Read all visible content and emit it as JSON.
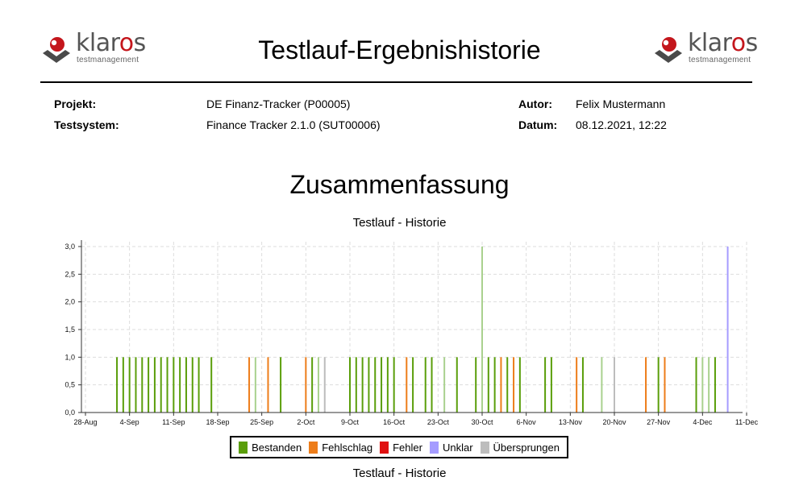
{
  "header": {
    "title": "Testlauf-Ergebnishistorie",
    "logo": {
      "brand_prefix": "klar",
      "brand_accent": "o",
      "brand_suffix": "s",
      "sub": "testmanagement"
    }
  },
  "meta": {
    "projekt_label": "Projekt:",
    "projekt_value": "DE Finanz-Tracker  (P00005)",
    "testsystem_label": "Testsystem:",
    "testsystem_value": "Finance Tracker 2.1.0 (SUT00006)",
    "autor_label": "Autor:",
    "autor_value": "Felix Mustermann",
    "datum_label": "Datum:",
    "datum_value": "08.12.2021, 12:22"
  },
  "section_title": "Zusammenfassung",
  "chart_data": {
    "type": "bar",
    "title": "Testlauf - Historie",
    "caption": "Testlauf - Historie",
    "xlabel": "",
    "ylabel": "",
    "ylim": [
      0,
      3.0
    ],
    "yticks": [
      "0,0",
      "0,5",
      "1,0",
      "1,5",
      "2,0",
      "2,5",
      "3,0"
    ],
    "xticks": [
      "28-Aug",
      "4-Sep",
      "11-Sep",
      "18-Sep",
      "25-Sep",
      "2-Oct",
      "9-Oct",
      "16-Oct",
      "23-Oct",
      "30-Oct",
      "6-Nov",
      "13-Nov",
      "20-Nov",
      "27-Nov",
      "4-Dec",
      "11-Dec"
    ],
    "x_start": "2021-08-28",
    "x_end": "2021-12-11",
    "grid": true,
    "legend_position": "bottom",
    "colors": {
      "Bestanden": "#5a9e0a",
      "Bestanden_light": "#a9d18e",
      "Fehlschlag": "#ed7d1a",
      "Fehler": "#e01010",
      "Unklar": "#a59cff",
      "Übersprungen": "#bdbdbd"
    },
    "legend": [
      {
        "name": "Bestanden",
        "color": "#5a9e0a"
      },
      {
        "name": "Fehlschlag",
        "color": "#ed7d1a"
      },
      {
        "name": "Fehler",
        "color": "#e01010"
      },
      {
        "name": "Unklar",
        "color": "#a59cff"
      },
      {
        "name": "Übersprungen",
        "color": "#bdbdbd"
      }
    ],
    "bars": [
      {
        "date": "2021-09-02",
        "value": 1,
        "status": "Bestanden"
      },
      {
        "date": "2021-09-03",
        "value": 1,
        "status": "Bestanden"
      },
      {
        "date": "2021-09-04",
        "value": 1,
        "status": "Bestanden"
      },
      {
        "date": "2021-09-05",
        "value": 1,
        "status": "Bestanden"
      },
      {
        "date": "2021-09-06",
        "value": 1,
        "status": "Bestanden"
      },
      {
        "date": "2021-09-07",
        "value": 1,
        "status": "Bestanden"
      },
      {
        "date": "2021-09-08",
        "value": 1,
        "status": "Bestanden"
      },
      {
        "date": "2021-09-09",
        "value": 1,
        "status": "Bestanden"
      },
      {
        "date": "2021-09-10",
        "value": 1,
        "status": "Bestanden"
      },
      {
        "date": "2021-09-11",
        "value": 1,
        "status": "Bestanden"
      },
      {
        "date": "2021-09-12",
        "value": 1,
        "status": "Bestanden"
      },
      {
        "date": "2021-09-13",
        "value": 1,
        "status": "Bestanden"
      },
      {
        "date": "2021-09-14",
        "value": 1,
        "status": "Bestanden"
      },
      {
        "date": "2021-09-15",
        "value": 1,
        "status": "Bestanden"
      },
      {
        "date": "2021-09-17",
        "value": 1,
        "status": "Bestanden"
      },
      {
        "date": "2021-09-23",
        "value": 1,
        "status": "Fehlschlag"
      },
      {
        "date": "2021-09-24",
        "value": 1,
        "status": "Bestanden_light"
      },
      {
        "date": "2021-09-26",
        "value": 1,
        "status": "Fehlschlag"
      },
      {
        "date": "2021-09-28",
        "value": 1,
        "status": "Bestanden"
      },
      {
        "date": "2021-10-02",
        "value": 1,
        "status": "Fehlschlag"
      },
      {
        "date": "2021-10-03",
        "value": 1,
        "status": "Bestanden"
      },
      {
        "date": "2021-10-04",
        "value": 1,
        "status": "Bestanden_light"
      },
      {
        "date": "2021-10-05",
        "value": 1,
        "status": "Übersprungen"
      },
      {
        "date": "2021-10-09",
        "value": 1,
        "status": "Bestanden"
      },
      {
        "date": "2021-10-10",
        "value": 1,
        "status": "Bestanden"
      },
      {
        "date": "2021-10-11",
        "value": 1,
        "status": "Bestanden"
      },
      {
        "date": "2021-10-12",
        "value": 1,
        "status": "Bestanden"
      },
      {
        "date": "2021-10-13",
        "value": 1,
        "status": "Bestanden"
      },
      {
        "date": "2021-10-14",
        "value": 1,
        "status": "Bestanden"
      },
      {
        "date": "2021-10-15",
        "value": 1,
        "status": "Bestanden"
      },
      {
        "date": "2021-10-16",
        "value": 1,
        "status": "Bestanden"
      },
      {
        "date": "2021-10-18",
        "value": 1,
        "status": "Fehlschlag"
      },
      {
        "date": "2021-10-19",
        "value": 1,
        "status": "Bestanden"
      },
      {
        "date": "2021-10-21",
        "value": 1,
        "status": "Bestanden"
      },
      {
        "date": "2021-10-22",
        "value": 1,
        "status": "Bestanden"
      },
      {
        "date": "2021-10-24",
        "value": 1,
        "status": "Bestanden_light"
      },
      {
        "date": "2021-10-26",
        "value": 1,
        "status": "Bestanden"
      },
      {
        "date": "2021-10-29",
        "value": 1,
        "status": "Bestanden"
      },
      {
        "date": "2021-10-30",
        "value": 3,
        "status": "Bestanden_light"
      },
      {
        "date": "2021-10-31",
        "value": 1,
        "status": "Bestanden"
      },
      {
        "date": "2021-11-01",
        "value": 1,
        "status": "Bestanden"
      },
      {
        "date": "2021-11-02",
        "value": 1,
        "status": "Fehlschlag"
      },
      {
        "date": "2021-11-03",
        "value": 1,
        "status": "Bestanden"
      },
      {
        "date": "2021-11-04",
        "value": 1,
        "status": "Fehlschlag"
      },
      {
        "date": "2021-11-05",
        "value": 1,
        "status": "Bestanden"
      },
      {
        "date": "2021-11-09",
        "value": 1,
        "status": "Bestanden"
      },
      {
        "date": "2021-11-10",
        "value": 1,
        "status": "Bestanden"
      },
      {
        "date": "2021-11-14",
        "value": 1,
        "status": "Fehlschlag"
      },
      {
        "date": "2021-11-15",
        "value": 1,
        "status": "Bestanden"
      },
      {
        "date": "2021-11-18",
        "value": 1,
        "status": "Bestanden_light"
      },
      {
        "date": "2021-11-20",
        "value": 1,
        "status": "Übersprungen"
      },
      {
        "date": "2021-11-25",
        "value": 1,
        "status": "Fehlschlag"
      },
      {
        "date": "2021-11-27",
        "value": 1,
        "status": "Bestanden"
      },
      {
        "date": "2021-11-28",
        "value": 1,
        "status": "Fehlschlag"
      },
      {
        "date": "2021-12-03",
        "value": 1,
        "status": "Bestanden"
      },
      {
        "date": "2021-12-04",
        "value": 1,
        "status": "Bestanden_light"
      },
      {
        "date": "2021-12-05",
        "value": 1,
        "status": "Bestanden_light"
      },
      {
        "date": "2021-12-06",
        "value": 1,
        "status": "Bestanden"
      },
      {
        "date": "2021-12-08",
        "value": 3,
        "status": "Unklar"
      }
    ]
  }
}
